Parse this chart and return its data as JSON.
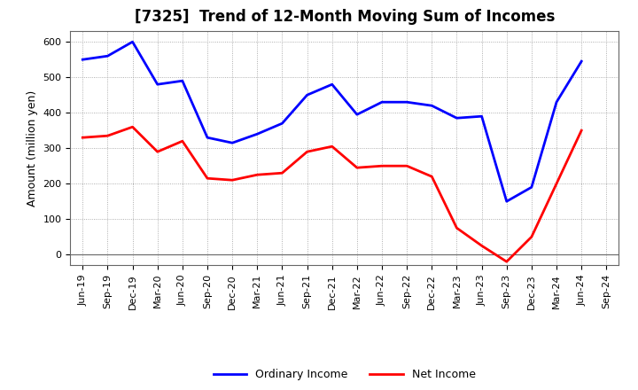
{
  "title": "[7325]  Trend of 12-Month Moving Sum of Incomes",
  "ylabel": "Amount (million yen)",
  "x_labels": [
    "Jun-19",
    "Sep-19",
    "Dec-19",
    "Mar-20",
    "Jun-20",
    "Sep-20",
    "Dec-20",
    "Mar-21",
    "Jun-21",
    "Sep-21",
    "Dec-21",
    "Mar-22",
    "Jun-22",
    "Sep-22",
    "Dec-22",
    "Mar-23",
    "Jun-23",
    "Sep-23",
    "Dec-23",
    "Mar-24",
    "Jun-24",
    "Sep-24"
  ],
  "ordinary_income": [
    550,
    560,
    600,
    480,
    490,
    330,
    315,
    340,
    370,
    450,
    480,
    395,
    430,
    430,
    420,
    385,
    390,
    150,
    190,
    430,
    545,
    null
  ],
  "net_income": [
    330,
    335,
    360,
    290,
    320,
    215,
    210,
    225,
    230,
    290,
    305,
    245,
    250,
    250,
    220,
    75,
    25,
    -20,
    50,
    200,
    350,
    null
  ],
  "ylim": [
    -30,
    630
  ],
  "yticks": [
    0,
    100,
    200,
    300,
    400,
    500,
    600
  ],
  "ordinary_color": "#0000FF",
  "net_color": "#FF0000",
  "background_color": "#FFFFFF",
  "grid_color": "#999999",
  "line_width": 2.0,
  "title_fontsize": 12,
  "label_fontsize": 9,
  "tick_fontsize": 8
}
